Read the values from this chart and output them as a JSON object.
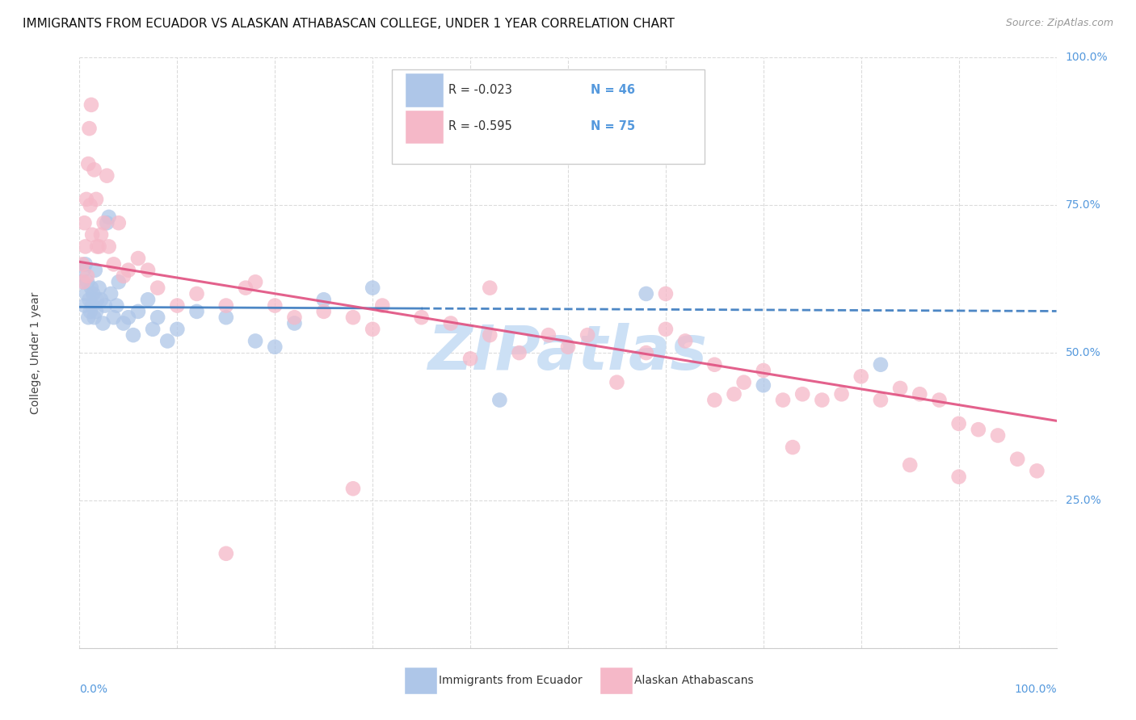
{
  "title": "IMMIGRANTS FROM ECUADOR VS ALASKAN ATHABASCAN COLLEGE, UNDER 1 YEAR CORRELATION CHART",
  "source": "Source: ZipAtlas.com",
  "ylabel": "College, Under 1 year",
  "blue_R": -0.023,
  "blue_N": 46,
  "pink_R": -0.595,
  "pink_N": 75,
  "blue_color": "#aec6e8",
  "pink_color": "#f5b8c8",
  "blue_line_color": "#3a7abf",
  "pink_line_color": "#e05080",
  "axis_label_color": "#5599dd",
  "watermark_color": "#cce0f5",
  "watermark_text": "ZIPatlas",
  "background_color": "#ffffff",
  "grid_color": "#d8d8d8",
  "blue_scatter_x": [
    0.003,
    0.004,
    0.005,
    0.006,
    0.007,
    0.008,
    0.009,
    0.01,
    0.011,
    0.012,
    0.013,
    0.014,
    0.015,
    0.016,
    0.017,
    0.018,
    0.02,
    0.022,
    0.024,
    0.026,
    0.028,
    0.03,
    0.032,
    0.035,
    0.038,
    0.04,
    0.045,
    0.05,
    0.055,
    0.06,
    0.07,
    0.075,
    0.08,
    0.09,
    0.1,
    0.12,
    0.15,
    0.18,
    0.2,
    0.22,
    0.25,
    0.3,
    0.58,
    0.7,
    0.82,
    0.43
  ],
  "blue_scatter_y": [
    0.62,
    0.64,
    0.58,
    0.65,
    0.6,
    0.62,
    0.56,
    0.59,
    0.57,
    0.61,
    0.58,
    0.6,
    0.56,
    0.64,
    0.57,
    0.59,
    0.61,
    0.59,
    0.55,
    0.58,
    0.72,
    0.73,
    0.6,
    0.56,
    0.58,
    0.62,
    0.55,
    0.56,
    0.53,
    0.57,
    0.59,
    0.54,
    0.56,
    0.52,
    0.54,
    0.57,
    0.56,
    0.52,
    0.51,
    0.55,
    0.59,
    0.61,
    0.6,
    0.445,
    0.48,
    0.42
  ],
  "pink_scatter_x": [
    0.003,
    0.004,
    0.005,
    0.006,
    0.007,
    0.008,
    0.009,
    0.01,
    0.011,
    0.012,
    0.013,
    0.015,
    0.017,
    0.018,
    0.02,
    0.022,
    0.025,
    0.028,
    0.03,
    0.035,
    0.04,
    0.045,
    0.05,
    0.06,
    0.07,
    0.08,
    0.1,
    0.12,
    0.15,
    0.17,
    0.18,
    0.2,
    0.22,
    0.25,
    0.28,
    0.31,
    0.35,
    0.38,
    0.4,
    0.42,
    0.45,
    0.48,
    0.5,
    0.52,
    0.55,
    0.58,
    0.6,
    0.62,
    0.65,
    0.67,
    0.68,
    0.7,
    0.72,
    0.74,
    0.76,
    0.78,
    0.8,
    0.82,
    0.84,
    0.86,
    0.88,
    0.9,
    0.92,
    0.94,
    0.96,
    0.98,
    0.3,
    0.42,
    0.28,
    0.15,
    0.6,
    0.65,
    0.73,
    0.85,
    0.9
  ],
  "pink_scatter_y": [
    0.65,
    0.62,
    0.72,
    0.68,
    0.76,
    0.63,
    0.82,
    0.88,
    0.75,
    0.92,
    0.7,
    0.81,
    0.76,
    0.68,
    0.68,
    0.7,
    0.72,
    0.8,
    0.68,
    0.65,
    0.72,
    0.63,
    0.64,
    0.66,
    0.64,
    0.61,
    0.58,
    0.6,
    0.58,
    0.61,
    0.62,
    0.58,
    0.56,
    0.57,
    0.56,
    0.58,
    0.56,
    0.55,
    0.49,
    0.53,
    0.5,
    0.53,
    0.51,
    0.53,
    0.45,
    0.5,
    0.54,
    0.52,
    0.48,
    0.43,
    0.45,
    0.47,
    0.42,
    0.43,
    0.42,
    0.43,
    0.46,
    0.42,
    0.44,
    0.43,
    0.42,
    0.38,
    0.37,
    0.36,
    0.32,
    0.3,
    0.54,
    0.61,
    0.27,
    0.16,
    0.6,
    0.42,
    0.34,
    0.31,
    0.29
  ]
}
